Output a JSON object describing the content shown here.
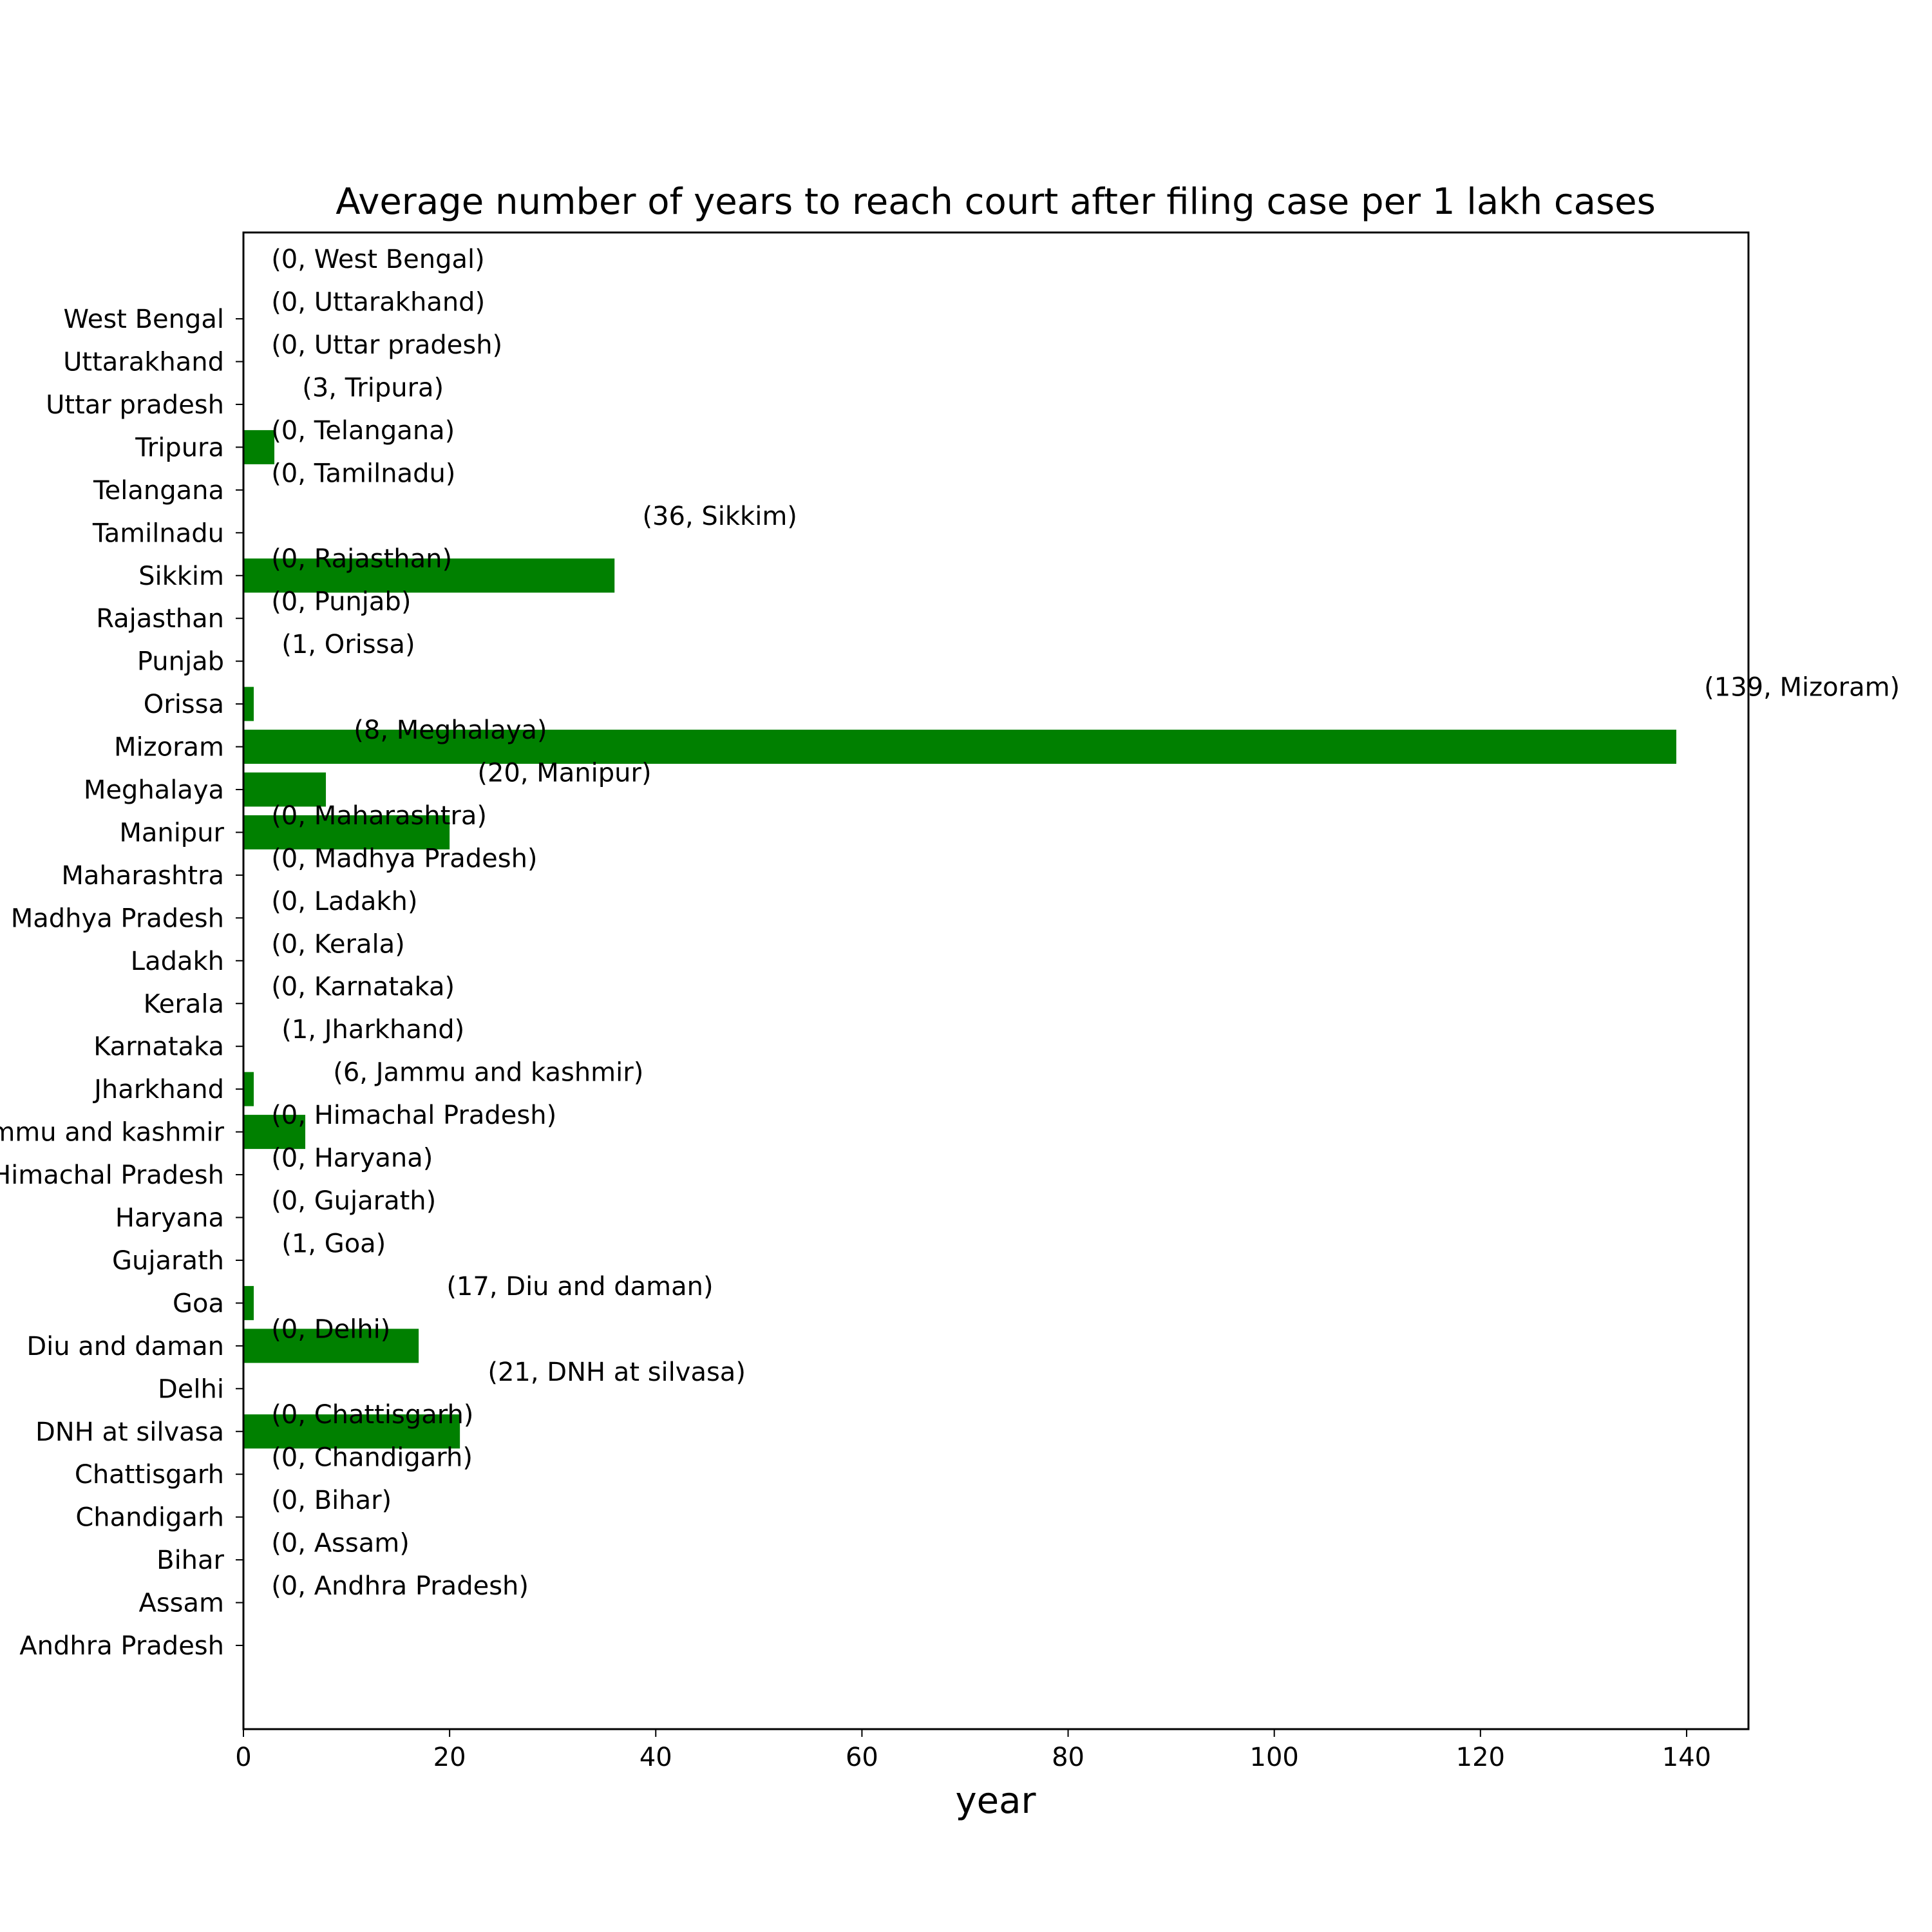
{
  "chart_data": {
    "type": "bar",
    "orientation": "horizontal",
    "title": "Average number of years to reach court  after filing case per 1 lakh cases",
    "xlabel": "year",
    "ylabel": "",
    "xlim": [
      0,
      146
    ],
    "xticks": [
      0,
      20,
      40,
      60,
      80,
      100,
      120,
      140
    ],
    "grid": false,
    "bar_color": "#008000",
    "categories": [
      "Andhra Pradesh",
      "Assam",
      "Bihar",
      "Chandigarh",
      "Chattisgarh",
      "DNH at silvasa",
      "Delhi",
      "Diu and daman",
      "Goa",
      "Gujarath",
      "Haryana",
      "Himachal Pradesh",
      "Jammu and kashmir",
      "Jharkhand",
      "Karnataka",
      "Kerala",
      "Ladakh",
      "Madhya Pradesh",
      "Maharashtra",
      "Manipur",
      "Meghalaya",
      "Mizoram",
      "Orissa",
      "Punjab",
      "Rajasthan",
      "Sikkim",
      "Tamilnadu",
      "Telangana",
      "Tripura",
      "Uttar pradesh",
      "Uttarakhand",
      "West Bengal"
    ],
    "values": [
      0,
      0,
      0,
      0,
      0,
      21,
      0,
      17,
      1,
      0,
      0,
      0,
      6,
      1,
      0,
      0,
      0,
      0,
      0,
      20,
      8,
      139,
      1,
      0,
      0,
      36,
      0,
      0,
      3,
      0,
      0,
      0
    ],
    "annotations": [
      "(0, Andhra Pradesh)",
      "(0, Assam)",
      "(0, Bihar)",
      "(0, Chandigarh)",
      "(0, Chattisgarh)",
      "(21, DNH at silvasa)",
      "(0, Delhi)",
      "(17, Diu and daman)",
      "(1, Goa)",
      "(0, Gujarath)",
      "(0, Haryana)",
      "(0, Himachal Pradesh)",
      "(6, Jammu and kashmir)",
      "(1, Jharkhand)",
      "(0, Karnataka)",
      "(0, Kerala)",
      "(0, Ladakh)",
      "(0, Madhya Pradesh)",
      "(0, Maharashtra)",
      "(20, Manipur)",
      "(8, Meghalaya)",
      "(139, Mizoram)",
      "(1, Orissa)",
      "(0, Punjab)",
      "(0, Rajasthan)",
      "(36, Sikkim)",
      "(0, Tamilnadu)",
      "(0, Telangana)",
      "(3, Tripura)",
      "(0, Uttar pradesh)",
      "(0, Uttarakhand)",
      "(0, West Bengal)"
    ]
  }
}
